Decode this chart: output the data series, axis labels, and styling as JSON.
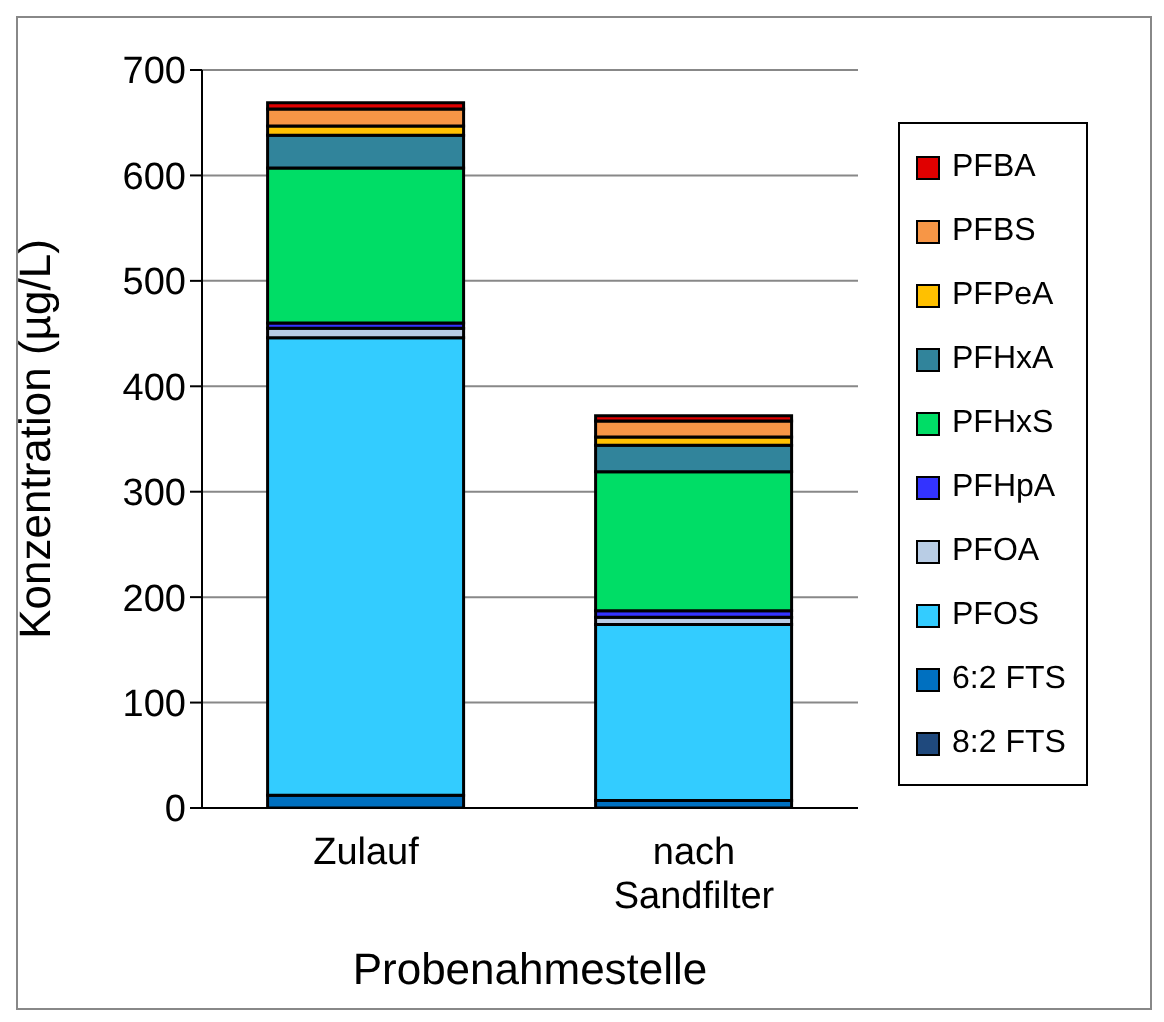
{
  "chart_data": {
    "type": "bar",
    "stacked": true,
    "xlabel": "Probenahmestelle",
    "ylabel": "Konzentration (µg/L)",
    "categories": [
      "Zulauf",
      "nach Sandfilter"
    ],
    "ylim": [
      0,
      700
    ],
    "yticks": [
      0,
      100,
      200,
      300,
      400,
      500,
      600,
      700
    ],
    "grid": "y",
    "legend": "right",
    "series": [
      {
        "name": "8:2 FTS",
        "color": "#1f497d",
        "values": [
          null,
          null
        ]
      },
      {
        "name": "6:2 FTS",
        "color": "#0070c0",
        "values": [
          12,
          7
        ]
      },
      {
        "name": "PFOS",
        "color": "#33ccff",
        "values": [
          434,
          167
        ]
      },
      {
        "name": "PFOA",
        "color": "#b9cde5",
        "values": [
          9,
          7
        ]
      },
      {
        "name": "PFHpA",
        "color": "#3333ff",
        "values": [
          5,
          6
        ]
      },
      {
        "name": "PFHxS",
        "color": "#00dd66",
        "values": [
          147,
          132
        ]
      },
      {
        "name": "PFHxA",
        "color": "#31849b",
        "values": [
          31,
          25
        ]
      },
      {
        "name": "PFPeA",
        "color": "#ffc000",
        "values": [
          9,
          8
        ]
      },
      {
        "name": "PFBS",
        "color": "#f79646",
        "values": [
          16,
          15
        ]
      },
      {
        "name": "PFBA",
        "color": "#e00000",
        "values": [
          6,
          5
        ]
      }
    ]
  }
}
